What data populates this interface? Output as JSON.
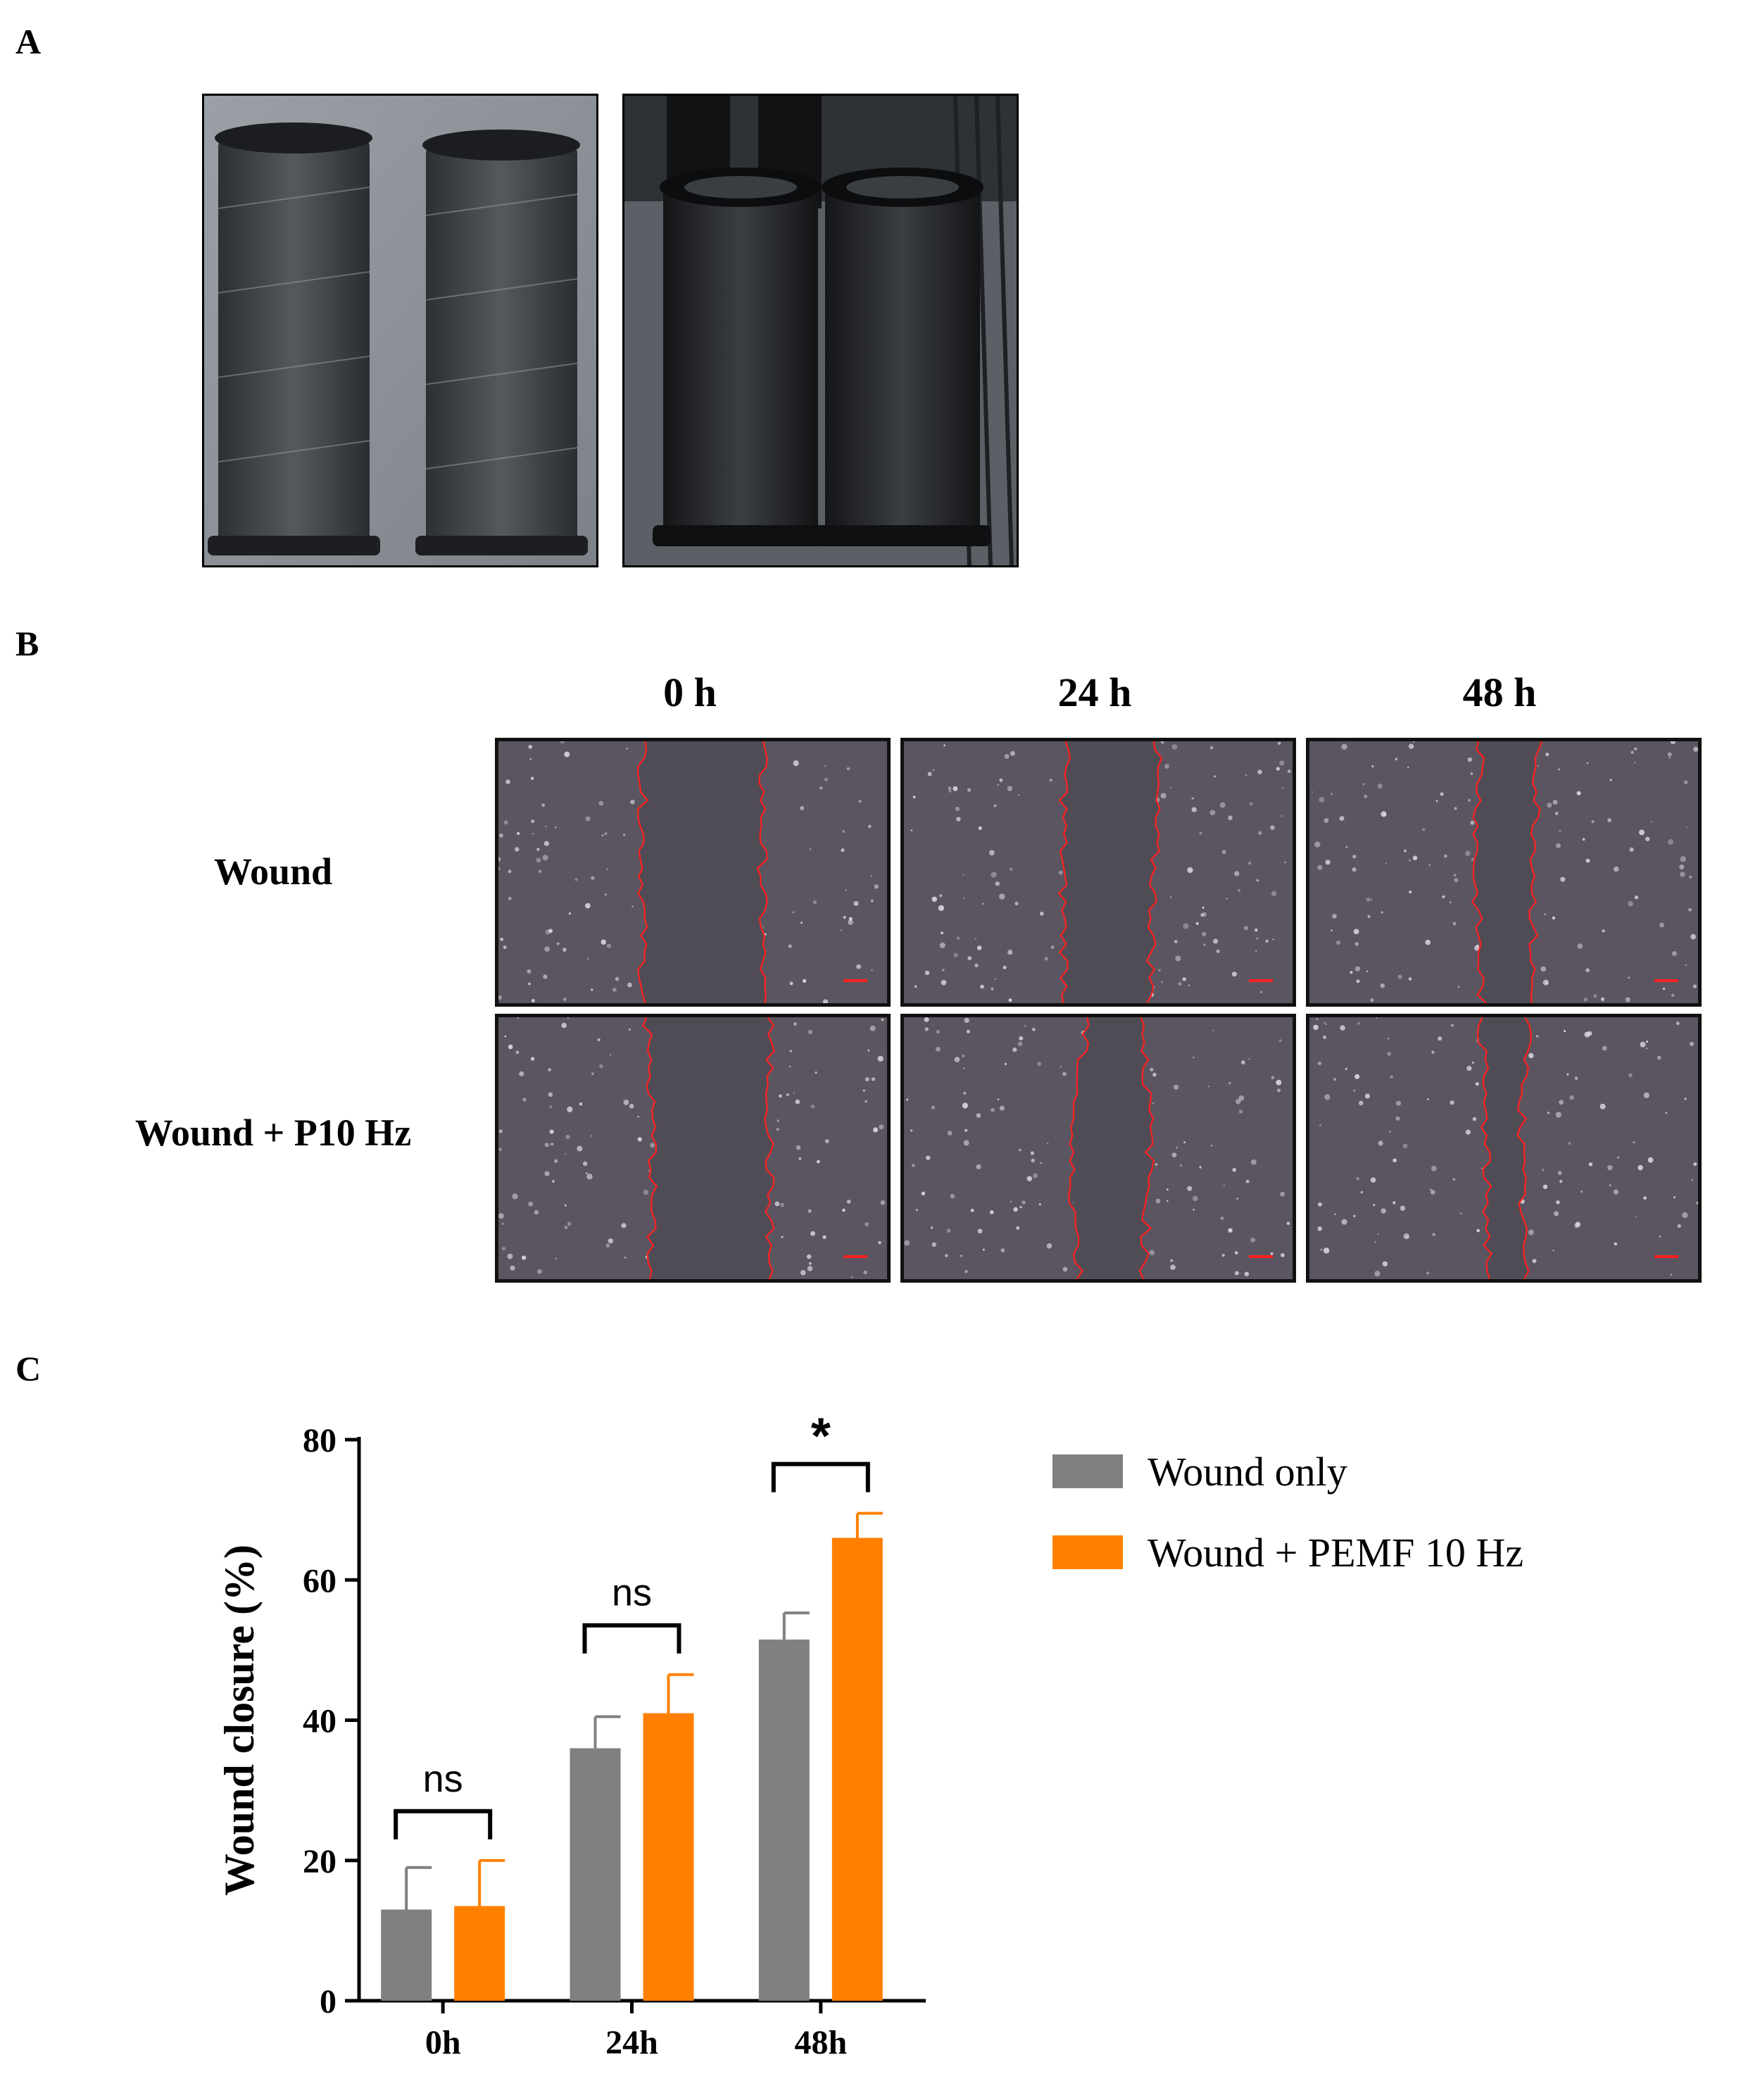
{
  "panels": {
    "a": "A",
    "b": "B",
    "c": "C"
  },
  "micrograph_grid": {
    "columns": [
      "0 h",
      "24 h",
      "48 h"
    ],
    "rows": [
      "Wound",
      "Wound + P10 Hz"
    ]
  },
  "chart_data": {
    "type": "bar",
    "categories": [
      "0h",
      "24h",
      "48h"
    ],
    "series": [
      {
        "name": "Wound only",
        "color": "#808080",
        "values": [
          13,
          36,
          51.5
        ],
        "errors": [
          6,
          4.5,
          3.8
        ]
      },
      {
        "name": "Wound + PEMF 10 Hz",
        "color": "#ff8000",
        "values": [
          13.5,
          41,
          66
        ],
        "errors": [
          6.5,
          5.5,
          3.5
        ]
      }
    ],
    "ylabel": "Wound closure (%)",
    "ylim": [
      0,
      80
    ],
    "yticks": [
      0,
      20,
      40,
      60,
      80
    ],
    "significance": [
      "ns",
      "ns",
      "*"
    ],
    "legend_position": "top-right"
  },
  "colors": {
    "trace": "#ff2020",
    "micro_bg": "#5a5560",
    "photo_bg": "#8a8e94"
  }
}
